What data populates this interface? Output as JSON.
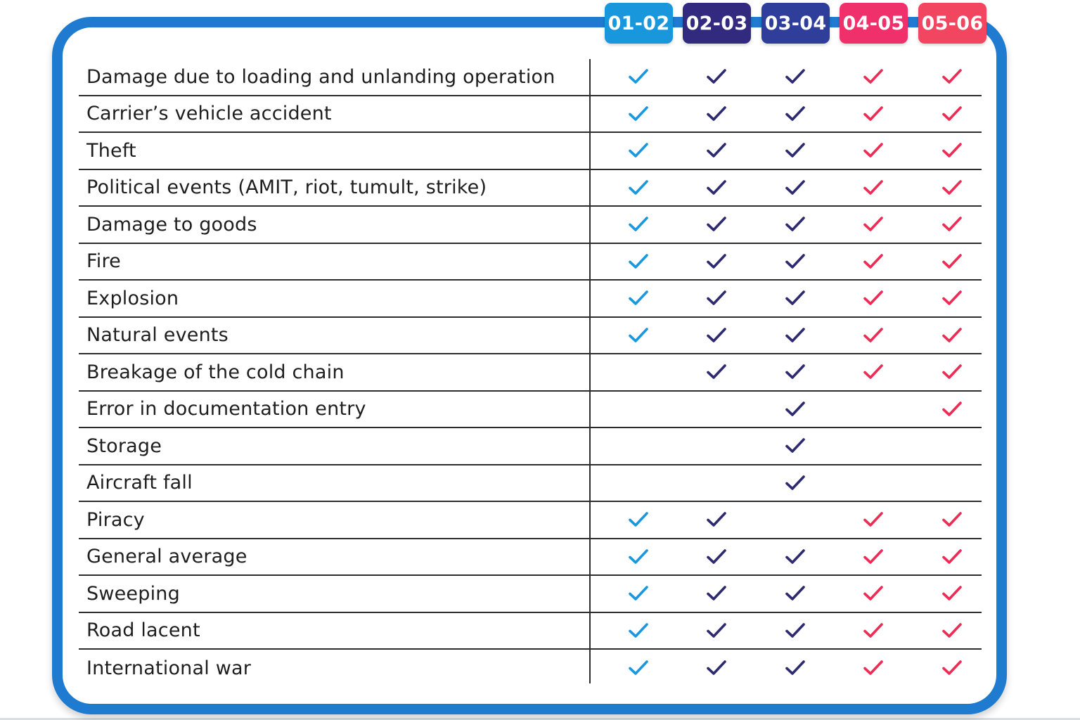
{
  "colors": {
    "frame": "#1f7bd0",
    "col_01_02": "#1897dc",
    "col_02_03": "#2f2a7a",
    "col_03_04": "#2c2f8c",
    "col_04_05": "#ef2b58",
    "col_05_06": "#f0405f"
  },
  "columns": [
    {
      "label": "01-02",
      "color": "#1897dc",
      "check_color": "#1a98dd"
    },
    {
      "label": "02-03",
      "color": "#322a7e",
      "check_color": "#2d2a70"
    },
    {
      "label": "03-04",
      "color": "#2f3e9a",
      "check_color": "#2d2a70"
    },
    {
      "label": "04-05",
      "color": "#f0306a",
      "check_color": "#ec2c55"
    },
    {
      "label": "05-06",
      "color": "#f2455f",
      "check_color": "#ec2c55"
    }
  ],
  "rows": [
    {
      "label": "Damage due to loading and unlanding operation",
      "checks": [
        true,
        true,
        true,
        true,
        true
      ]
    },
    {
      "label": "Carrier’s vehicle accident",
      "checks": [
        true,
        true,
        true,
        true,
        true
      ]
    },
    {
      "label": "Theft",
      "checks": [
        true,
        true,
        true,
        true,
        true
      ]
    },
    {
      "label": "Political events (AMIT, riot, tumult, strike)",
      "checks": [
        true,
        true,
        true,
        true,
        true
      ]
    },
    {
      "label": "Damage to goods",
      "checks": [
        true,
        true,
        true,
        true,
        true
      ]
    },
    {
      "label": "Fire",
      "checks": [
        true,
        true,
        true,
        true,
        true
      ]
    },
    {
      "label": "Explosion",
      "checks": [
        true,
        true,
        true,
        true,
        true
      ]
    },
    {
      "label": "Natural events",
      "checks": [
        true,
        true,
        true,
        true,
        true
      ]
    },
    {
      "label": "Breakage of the cold chain",
      "checks": [
        false,
        true,
        true,
        true,
        true
      ]
    },
    {
      "label": "Error in documentation entry",
      "checks": [
        false,
        false,
        true,
        false,
        true
      ]
    },
    {
      "label": "Storage",
      "checks": [
        false,
        false,
        true,
        false,
        false
      ]
    },
    {
      "label": "Aircraft fall",
      "checks": [
        false,
        false,
        true,
        false,
        false
      ]
    },
    {
      "label": "Piracy",
      "checks": [
        true,
        true,
        false,
        true,
        true
      ]
    },
    {
      "label": "General average",
      "checks": [
        true,
        true,
        true,
        true,
        true
      ]
    },
    {
      "label": "Sweeping",
      "checks": [
        true,
        true,
        true,
        true,
        true
      ]
    },
    {
      "label": "Road lacent",
      "checks": [
        true,
        true,
        true,
        true,
        true
      ]
    },
    {
      "label": "International war",
      "checks": [
        true,
        true,
        true,
        true,
        true
      ]
    }
  ],
  "icons": {
    "check": "check-icon"
  }
}
